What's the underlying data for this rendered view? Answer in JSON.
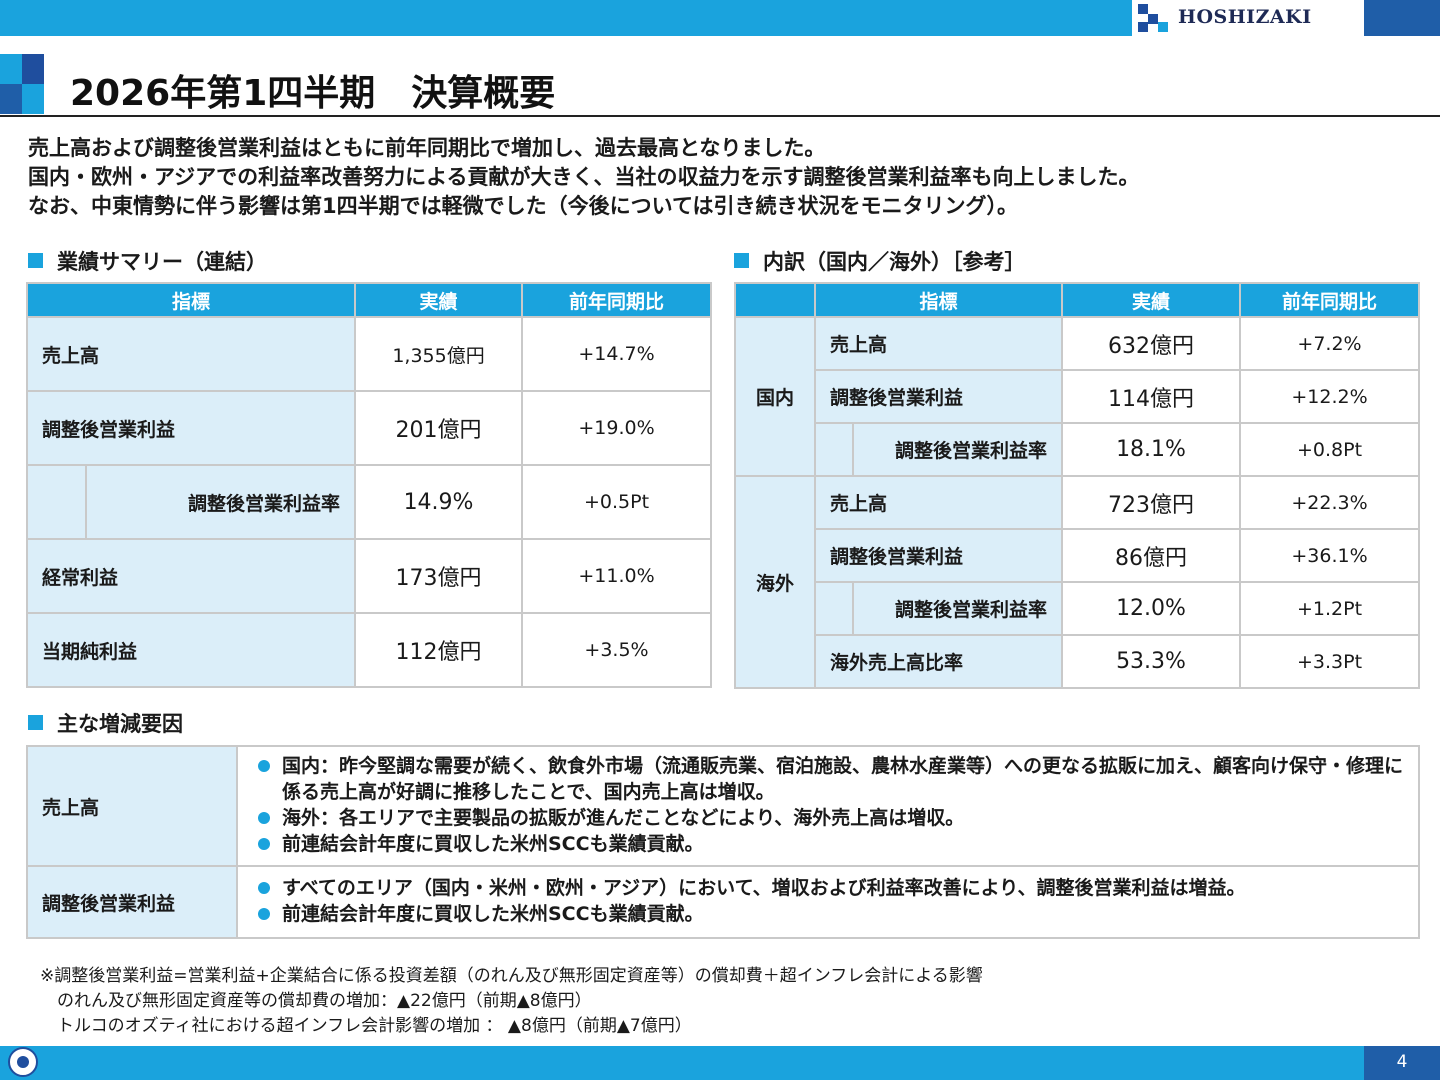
{
  "brand": {
    "logo_text": "HOSHIZAKI"
  },
  "title": "2026年第1四半期　決算概要",
  "lead_lines": [
    "売上高および調整後営業利益はともに前年同期比で増加し、過去最高となりました。",
    "国内・欧州・アジアでの利益率改善努力による貢献が大きく、当社の収益力を示す調整後営業利益率も向上しました。",
    "なお、中東情勢に伴う影響は第1四半期では軽微でした（今後については引き続き状況をモニタリング）。"
  ],
  "summary": {
    "heading": "業績サマリー（連結）",
    "headers": [
      "指標",
      "実績",
      "前年同期比"
    ],
    "rows": [
      {
        "label": "売上高",
        "value": "1,355億円",
        "yoy": "+14.7%"
      },
      {
        "label": "調整後営業利益",
        "value": "201億円",
        "yoy": "+19.0%"
      },
      {
        "label": "調整後営業利益率",
        "value": "14.9%",
        "yoy": "+0.5Pt"
      },
      {
        "label": "経常利益",
        "value": "173億円",
        "yoy": "+11.0%"
      },
      {
        "label": "当期純利益",
        "value": "112億円",
        "yoy": "+3.5%"
      }
    ]
  },
  "breakdown": {
    "heading": "内訳（国内／海外）［参考］",
    "headers": [
      "指標",
      "実績",
      "前年同期比"
    ],
    "domestic": {
      "group": "国内",
      "rows": [
        {
          "label": "売上高",
          "value": "632億円",
          "yoy": "+7.2%"
        },
        {
          "label": "調整後営業利益",
          "value": "114億円",
          "yoy": "+12.2%"
        },
        {
          "label": "調整後営業利益率",
          "value": "18.1%",
          "yoy": "+0.8Pt"
        }
      ]
    },
    "overseas": {
      "group": "海外",
      "rows": [
        {
          "label": "売上高",
          "value": "723億円",
          "yoy": "+22.3%"
        },
        {
          "label": "調整後営業利益",
          "value": "86億円",
          "yoy": "+36.1%"
        },
        {
          "label": "調整後営業利益率",
          "value": "12.0%",
          "yoy": "+1.2Pt"
        },
        {
          "label": "海外売上高比率",
          "value": "53.3%",
          "yoy": "+3.3Pt"
        }
      ]
    }
  },
  "factors": {
    "heading": "主な増減要因",
    "sales": {
      "label": "売上高",
      "bullets": [
        "国内：昨今堅調な需要が続く、飲食外市場（流通販売業、宿泊施設、農林水産業等）への更なる拡販に加え、顧客向け保守・修理に係る売上高が好調に推移したことで、国内売上高は増収。",
        "海外：各エリアで主要製品の拡販が進んだことなどにより、海外売上高は増収。",
        "前連結会計年度に買収した米州SCCも業績貢献。"
      ]
    },
    "profit": {
      "label": "調整後営業利益",
      "bullets": [
        "すべてのエリア（国内・米州・欧州・アジア）において、増収および利益率改善により、調整後営業利益は増益。",
        "前連結会計年度に買収した米州SCCも業績貢献。"
      ]
    }
  },
  "notes": [
    "※調整後営業利益=営業利益+企業結合に係る投資差額（のれん及び無形固定資産等）の償却費＋超インフレ会計による影響",
    "　のれん及び無形固定資産等の償却費の増加：▲22億円（前期▲8億円）",
    "　トルコのオズティ社における超インフレ会計影響の増加 ： ▲8億円（前期▲7億円）"
  ],
  "page_number": "4",
  "colors": {
    "accent": "#1aa3dd",
    "navy": "#1f4e9e",
    "cell_bg": "#dbeef9",
    "border": "#c9c9c9"
  }
}
